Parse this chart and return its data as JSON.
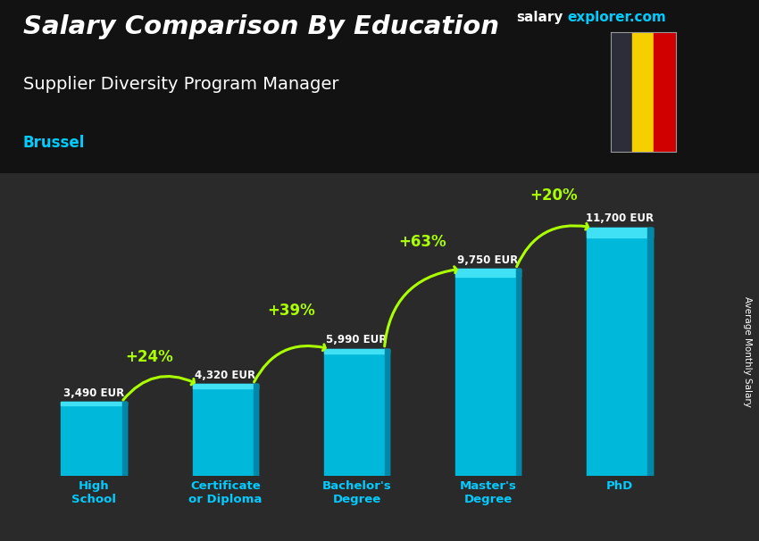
{
  "title_main": "Salary Comparison By Education",
  "title_sub": "Supplier Diversity Program Manager",
  "title_location": "Brussel",
  "website_part1": "salary",
  "website_part2": "explorer.com",
  "ylabel": "Average Monthly Salary",
  "categories": [
    "High\nSchool",
    "Certificate\nor Diploma",
    "Bachelor's\nDegree",
    "Master's\nDegree",
    "PhD"
  ],
  "values": [
    3490,
    4320,
    5990,
    9750,
    11700
  ],
  "value_labels": [
    "3,490 EUR",
    "4,320 EUR",
    "5,990 EUR",
    "9,750 EUR",
    "11,700 EUR"
  ],
  "pct_labels": [
    "+24%",
    "+39%",
    "+63%",
    "+20%"
  ],
  "bar_color_main": "#00b8d9",
  "bar_color_light": "#40e0f5",
  "bar_color_dark": "#0088aa",
  "bg_color": "#2a2a2a",
  "text_color_white": "#ffffff",
  "text_color_cyan": "#00ccff",
  "text_color_green": "#aaff00",
  "arrow_color": "#aaff00",
  "ylim": [
    0,
    14000
  ],
  "bar_width": 0.5,
  "flag_colors": [
    "#2d2d3a",
    "#f5d000",
    "#d10000"
  ]
}
